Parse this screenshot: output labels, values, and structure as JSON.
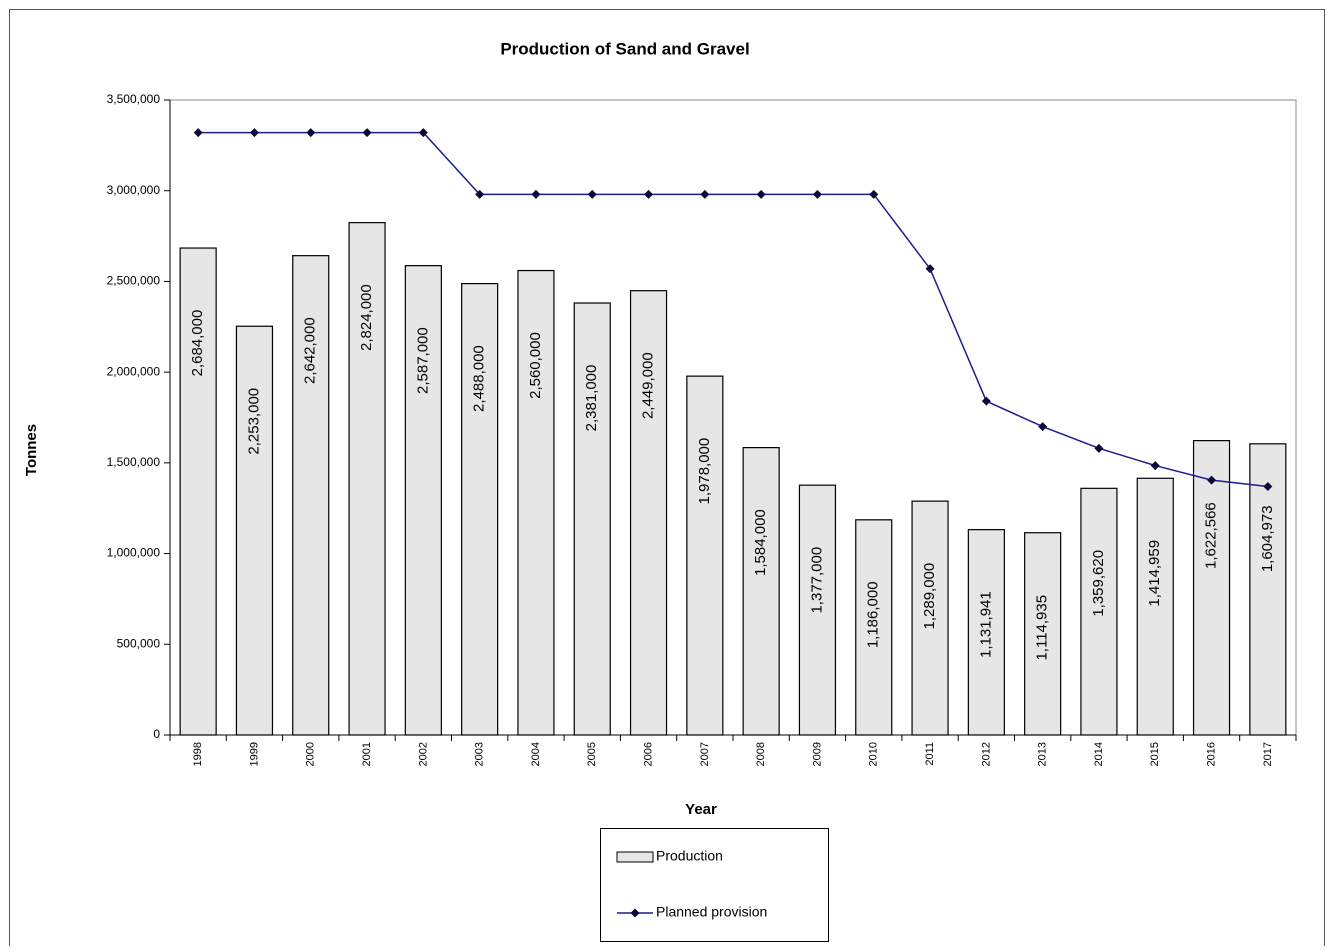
{
  "chart_data": {
    "type": "bar",
    "title": "Production of Sand and Gravel",
    "x_label": "Year",
    "y_label": "Tonnes",
    "categories": [
      "1998",
      "1999",
      "2000",
      "2001",
      "2002",
      "2003",
      "2004",
      "2005",
      "2006",
      "2007",
      "2008",
      "2009",
      "2010",
      "2011",
      "2012",
      "2013",
      "2014",
      "2015",
      "2016",
      "2017"
    ],
    "series": [
      {
        "name": "Production",
        "type": "bar",
        "color": "#e6e6e6",
        "values": [
          2684000,
          2253000,
          2642000,
          2824000,
          2587000,
          2488000,
          2560000,
          2381000,
          2449000,
          1978000,
          1584000,
          1377000,
          1186000,
          1289000,
          1131941,
          1114935,
          1359620,
          1414959,
          1622566,
          1604973
        ],
        "value_labels": [
          "2,684,000",
          "2,253,000",
          "2,642,000",
          "2,824,000",
          "2,587,000",
          "2,488,000",
          "2,560,000",
          "2,381,000",
          "2,449,000",
          "1,978,000",
          "1,584,000",
          "1,377,000",
          "1,186,000",
          "1,289,000",
          "1,131,941",
          "1,114,935",
          "1,359,620",
          "1,414,959",
          "1,622,566",
          "1,604,973"
        ]
      },
      {
        "name": "Planned provision",
        "type": "line",
        "color": "#1c1c8c",
        "values": [
          3320000,
          3320000,
          3320000,
          3320000,
          3320000,
          2980000,
          2980000,
          2980000,
          2980000,
          2980000,
          2980000,
          2980000,
          2980000,
          2570000,
          1840000,
          1700000,
          1580000,
          1485000,
          1405000,
          1370000
        ]
      }
    ],
    "ylim": [
      0,
      3500000
    ],
    "yticks": [
      0,
      {
        "value": 500000,
        "label": "500,000"
      },
      {
        "value": 1000000,
        "label": "1,000,000"
      },
      {
        "value": 1500000,
        "label": "1,500,000"
      },
      {
        "value": 2000000,
        "label": "2,000,000"
      },
      {
        "value": 2500000,
        "label": "2,500,000"
      },
      {
        "value": 3000000,
        "label": "3,000,000"
      },
      {
        "value": 3500000,
        "label": "3,500,000"
      }
    ],
    "grid": false,
    "legend": "bottom"
  }
}
